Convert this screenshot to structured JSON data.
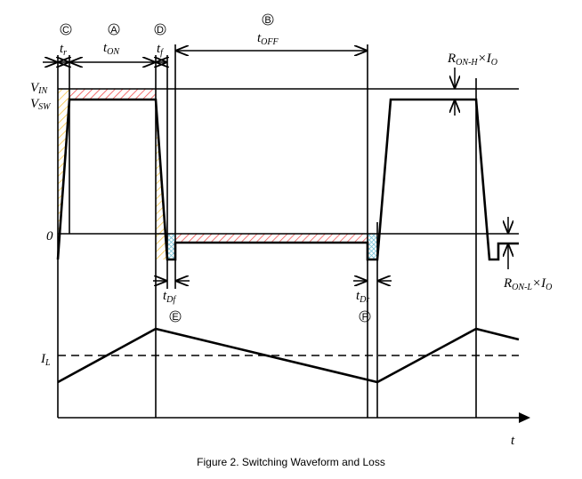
{
  "caption": "Figure 2. Switching Waveform and Loss",
  "axis": {
    "time_label": "t"
  },
  "levels": {
    "vin": {
      "main": "V",
      "sub": "IN"
    },
    "vsw": {
      "main": "V",
      "sub": "SW"
    },
    "zero": "0",
    "il": {
      "main": "I",
      "sub": "L"
    }
  },
  "intervals": [
    {
      "marker": "C",
      "main": "t",
      "sub": "r"
    },
    {
      "marker": "A",
      "main": "t",
      "sub": "ON"
    },
    {
      "marker": "D",
      "main": "t",
      "sub": "f"
    },
    {
      "marker": "B",
      "main": "t",
      "sub": "OFF"
    },
    {
      "marker": "E",
      "main": "t",
      "sub": "Df"
    },
    {
      "marker": "F",
      "main": "t",
      "sub": "Dr"
    }
  ],
  "drops": {
    "high": {
      "r": "R",
      "r_sub": "ON-H",
      "x": "×I",
      "i_sub": "O"
    },
    "low": {
      "r": "R",
      "r_sub": "ON-L",
      "x": "×I",
      "i_sub": "O"
    }
  },
  "colors": {
    "switching_loss": "#f5c242",
    "conduction_loss": "#f04848",
    "diode_loss": "#7cc4d8"
  }
}
